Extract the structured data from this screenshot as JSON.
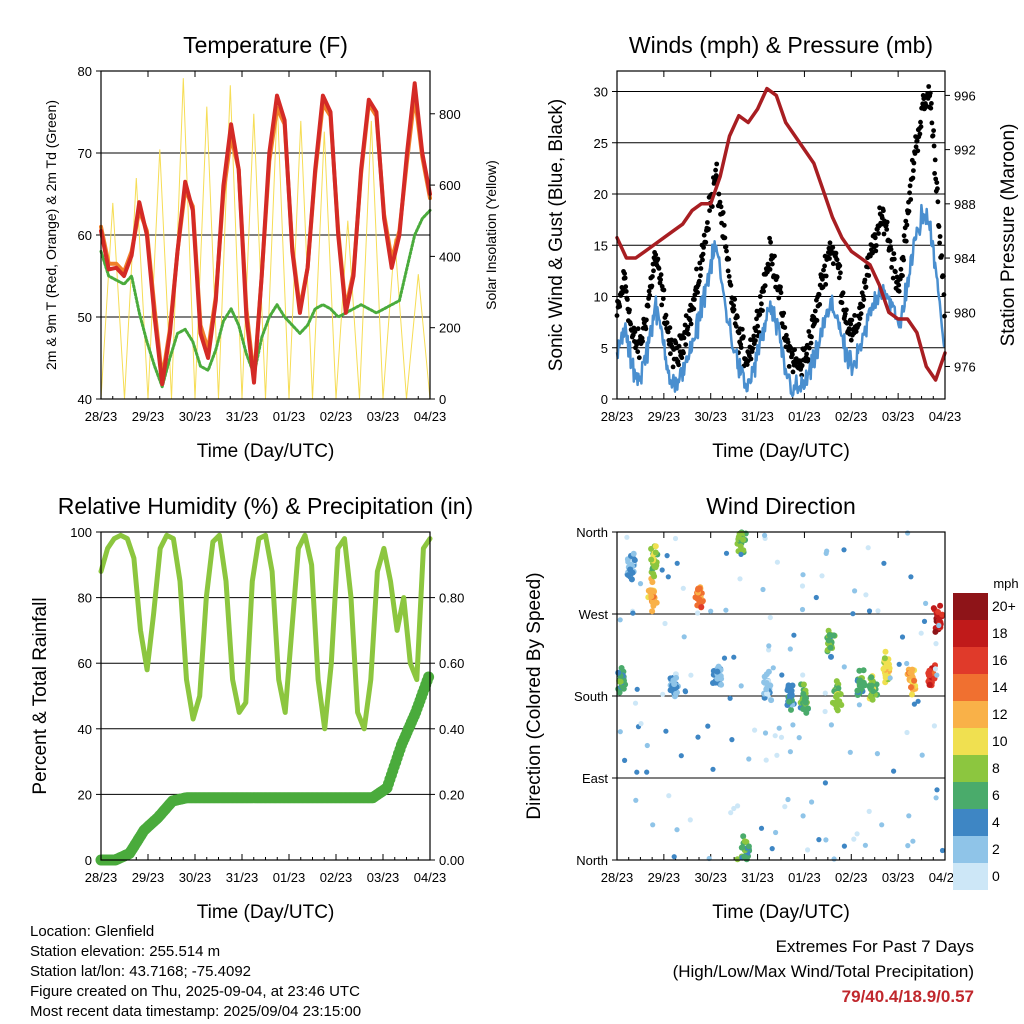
{
  "chart_data": [
    {
      "type": "line",
      "title": "Temperature (F)",
      "xlabel": "Time (Day/UTC)",
      "ylabel": "2m & 9m T (Red, Orange) & 2m Td (Green)",
      "y2label": "Solar Insolation (Yellow)",
      "x_ticks": [
        "28/23",
        "29/23",
        "30/23",
        "31/23",
        "01/23",
        "02/23",
        "03/23",
        "04/23"
      ],
      "ylim": [
        40,
        80
      ],
      "y_ticks": [
        40,
        50,
        60,
        70,
        80
      ],
      "y2lim": [
        0,
        920
      ],
      "y2_ticks": [
        0,
        200,
        400,
        600,
        800
      ],
      "grid": true,
      "series": [
        {
          "color": "#d42a26",
          "axis": "left",
          "values": [
            60.5,
            55.8,
            56.0,
            55.0,
            57.5,
            64.0,
            60.0,
            50.0,
            41.8,
            48.0,
            58.0,
            66.5,
            63.0,
            48.0,
            45.0,
            52.0,
            66.0,
            73.5,
            68.0,
            50.0,
            42.0,
            55.0,
            70.0,
            77.0,
            74.0,
            58.0,
            50.5,
            56.0,
            68.0,
            77.0,
            75.0,
            60.0,
            50.5,
            55.0,
            68.0,
            76.5,
            75.0,
            62.0,
            56.0,
            60.0,
            70.0,
            78.5,
            70.0,
            65.0
          ]
        },
        {
          "color": "#f07f2a",
          "axis": "left",
          "values": [
            61.0,
            56.5,
            56.5,
            55.5,
            58.0,
            63.0,
            60.5,
            51.0,
            42.5,
            48.5,
            58.0,
            65.5,
            63.5,
            49.0,
            46.0,
            52.5,
            65.0,
            72.0,
            68.0,
            51.0,
            42.5,
            55.0,
            69.0,
            75.5,
            73.5,
            58.5,
            51.0,
            56.0,
            67.5,
            76.0,
            74.5,
            60.5,
            51.0,
            55.5,
            67.5,
            76.0,
            74.5,
            62.5,
            57.0,
            60.5,
            69.0,
            77.0,
            69.5,
            64.5
          ]
        },
        {
          "color": "#4aab3c",
          "axis": "left",
          "values": [
            58.0,
            55.0,
            54.5,
            54.0,
            55.0,
            50.5,
            47.0,
            44.0,
            41.5,
            45.0,
            48.0,
            48.5,
            47.0,
            44.0,
            43.5,
            46.0,
            49.5,
            51.0,
            49.0,
            45.5,
            43.0,
            47.5,
            50.0,
            51.5,
            50.0,
            49.0,
            48.0,
            49.0,
            51.0,
            51.5,
            51.0,
            50.0,
            50.5,
            51.0,
            51.5,
            51.0,
            50.5,
            51.0,
            51.5,
            52.0,
            56.0,
            60.0,
            62.0,
            63.0
          ]
        },
        {
          "color": "#f6dd55",
          "axis": "right",
          "values": [
            0,
            550,
            0,
            620,
            0,
            700,
            0,
            900,
            0,
            820,
            0,
            880,
            0,
            800,
            0,
            830,
            0,
            780,
            0,
            750,
            0,
            500,
            0,
            780,
            0,
            450,
            0,
            350,
            0
          ]
        }
      ]
    },
    {
      "type": "scatter",
      "title": "Winds (mph) & Pressure (mb)",
      "xlabel": "Time (Day/UTC)",
      "ylabel": "Sonic Wind & Gust (Blue, Black)",
      "y2label": "Station Pressure (Maroon)",
      "x_ticks": [
        "28/23",
        "29/23",
        "30/23",
        "31/23",
        "01/23",
        "02/23",
        "03/23",
        "04/23"
      ],
      "ylim": [
        0,
        32
      ],
      "y_ticks": [
        0,
        5,
        10,
        15,
        20,
        25,
        30
      ],
      "y2lim": [
        973.6,
        997.8
      ],
      "y2_ticks": [
        976,
        980,
        984,
        988,
        992,
        996
      ],
      "grid": true,
      "series": [
        {
          "color": "#000000",
          "values": [
            8,
            12,
            6,
            5,
            9,
            14,
            10,
            5,
            4,
            7,
            9,
            13,
            18,
            22,
            16,
            10,
            6,
            4,
            6,
            10,
            14,
            12,
            6,
            4,
            3,
            5,
            8,
            12,
            15,
            13,
            8,
            6,
            9,
            13,
            16,
            18,
            14,
            11,
            17,
            24,
            28,
            30,
            20,
            8
          ]
        },
        {
          "color": "#4a8fcf",
          "values": [
            4,
            7,
            3,
            2,
            5,
            9,
            6,
            2,
            1,
            4,
            5,
            9,
            12,
            15,
            10,
            6,
            3,
            1,
            3,
            6,
            9,
            7,
            3,
            1,
            1,
            2,
            4,
            7,
            9,
            8,
            4,
            3,
            5,
            8,
            10,
            11,
            9,
            7,
            11,
            15,
            18,
            17,
            12,
            4
          ]
        },
        {
          "color": "#a81e22",
          "values": [
            985.5,
            984.0,
            984.0,
            984.5,
            985.0,
            985.5,
            986.0,
            986.5,
            987.5,
            988.0,
            988.0,
            990.0,
            993.0,
            994.5,
            994.0,
            995.0,
            996.5,
            996.0,
            994.0,
            993.0,
            992.0,
            991.0,
            989.0,
            987.0,
            985.5,
            984.5,
            984.0,
            983.5,
            982.0,
            980.0,
            979.5,
            979.5,
            978.5,
            976.0,
            975.0,
            977.0
          ]
        }
      ]
    },
    {
      "type": "line",
      "title": "Relative Humidity (%) & Precipitation (in)",
      "xlabel": "Time (Day/UTC)",
      "ylabel": "Percent & Total Rainfall",
      "x_ticks": [
        "28/23",
        "29/23",
        "30/23",
        "31/23",
        "01/23",
        "02/23",
        "03/23",
        "04/23"
      ],
      "ylim": [
        0,
        100
      ],
      "y_ticks": [
        0,
        20,
        40,
        60,
        80,
        100
      ],
      "y2lim": [
        0,
        1.0
      ],
      "y2_ticks": [
        "0.00",
        "0.20",
        "0.40",
        "0.60",
        "0.80"
      ],
      "grid": true,
      "series": [
        {
          "color": "#8cc63f",
          "axis": "left",
          "values": [
            88,
            95,
            98,
            99,
            98,
            92,
            70,
            58,
            75,
            95,
            99,
            98,
            85,
            55,
            43,
            50,
            80,
            97,
            99,
            85,
            55,
            45,
            48,
            85,
            98,
            99,
            88,
            55,
            45,
            70,
            95,
            99,
            90,
            55,
            40,
            60,
            95,
            98,
            80,
            45,
            40,
            55,
            88,
            95,
            85,
            70,
            80,
            60,
            55,
            95,
            98
          ]
        },
        {
          "color": "#4aab3c",
          "axis": "right",
          "values": [
            0.0,
            0.0,
            0.02,
            0.09,
            0.13,
            0.18,
            0.19,
            0.19,
            0.19,
            0.19,
            0.19,
            0.19,
            0.19,
            0.19,
            0.19,
            0.19,
            0.19,
            0.19,
            0.19,
            0.19,
            0.22,
            0.35,
            0.45,
            0.57
          ]
        }
      ]
    },
    {
      "type": "scatter",
      "title": "Wind Direction",
      "xlabel": "Time (Day/UTC)",
      "ylabel": "Direction (Colored By Speed)",
      "x_ticks": [
        "28/23",
        "29/23",
        "30/23",
        "31/23",
        "01/23",
        "02/23",
        "03/23",
        "04/23"
      ],
      "y_ticks": [
        "North",
        "East",
        "South",
        "West",
        "North"
      ],
      "ylim": [
        0,
        360
      ],
      "grid": true,
      "legend": {
        "title": "mph",
        "labels": [
          "0",
          "2",
          "4",
          "6",
          "8",
          "10",
          "12",
          "14",
          "16",
          "18",
          "20+"
        ],
        "colors": [
          "#cde7f7",
          "#8fc4e8",
          "#3e86c4",
          "#4aab6b",
          "#8cc63f",
          "#f0e050",
          "#f9b148",
          "#f07030",
          "#e03a2a",
          "#c01a1a",
          "#8e1418"
        ]
      },
      "clusters": [
        {
          "x_day": 0.1,
          "dir": 195,
          "speed": 6
        },
        {
          "x_day": 0.3,
          "dir": 320,
          "speed": 3
        },
        {
          "x_day": 0.75,
          "dir": 290,
          "speed": 12
        },
        {
          "x_day": 0.8,
          "dir": 330,
          "speed": 8
        },
        {
          "x_day": 1.2,
          "dir": 195,
          "speed": 3
        },
        {
          "x_day": 1.75,
          "dir": 292,
          "speed": 14
        },
        {
          "x_day": 2.15,
          "dir": 200,
          "speed": 3
        },
        {
          "x_day": 2.65,
          "dir": 350,
          "speed": 7
        },
        {
          "x_day": 2.75,
          "dir": 10,
          "speed": 6
        },
        {
          "x_day": 3.2,
          "dir": 190,
          "speed": 2
        },
        {
          "x_day": 3.7,
          "dir": 180,
          "speed": 4
        },
        {
          "x_day": 4.0,
          "dir": 175,
          "speed": 6
        },
        {
          "x_day": 4.55,
          "dir": 240,
          "speed": 7
        },
        {
          "x_day": 4.7,
          "dir": 180,
          "speed": 8
        },
        {
          "x_day": 5.2,
          "dir": 195,
          "speed": 6
        },
        {
          "x_day": 5.45,
          "dir": 190,
          "speed": 8
        },
        {
          "x_day": 5.75,
          "dir": 210,
          "speed": 10
        },
        {
          "x_day": 6.3,
          "dir": 198,
          "speed": 12
        },
        {
          "x_day": 6.7,
          "dir": 200,
          "speed": 16
        },
        {
          "x_day": 6.85,
          "dir": 260,
          "speed": 18
        }
      ]
    }
  ],
  "info": {
    "location": "Location: Glenfield",
    "elevation": "Station elevation: 255.514 m",
    "latlon": "Station lat/lon: 43.7168; -75.4092",
    "created": "Figure created on Thu, 2025-09-04, at 23:46 UTC",
    "recent": "Most recent data timestamp: 2025/09/04 23:15:00"
  },
  "extremes": {
    "heading": "Extremes For Past 7 Days",
    "subheading": "(High/Low/Max Wind/Total Precipitation)",
    "values": "79/40.4/18.9/0.57"
  }
}
